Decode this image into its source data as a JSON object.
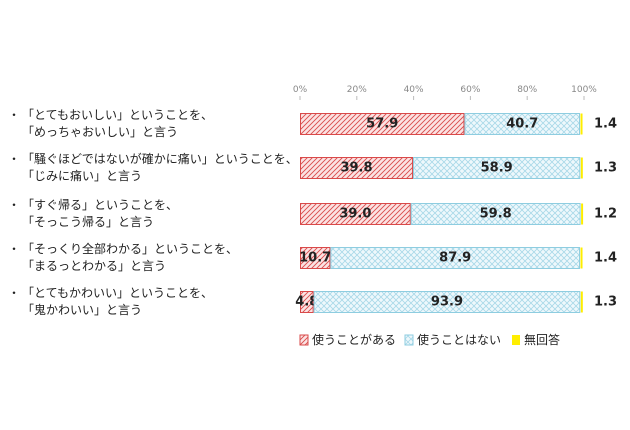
{
  "chart_data": {
    "type": "bar",
    "stacked": true,
    "orientation": "horizontal",
    "xlim": [
      0,
      100
    ],
    "x_ticks": [
      "0%",
      "20%",
      "40%",
      "60%",
      "80%",
      "100%"
    ],
    "categories": [
      [
        "「とてもおいしい」ということを、",
        "「めっちゃおいしい」と言う"
      ],
      [
        "「騒ぐほどではないが確かに痛い」ということを、",
        "「じみに痛い」と言う"
      ],
      [
        "「すぐ帰る」ということを、",
        "「そっこう帰る」と言う"
      ],
      [
        "「そっくり全部わかる」ということを、",
        "「まるっとわかる」と言う"
      ],
      [
        "「とてもかわいい」ということを、",
        "「鬼かわいい」と言う"
      ]
    ],
    "bullet": "・",
    "series": [
      {
        "name": "使うことがある",
        "values": [
          57.9,
          39.8,
          39.0,
          10.7,
          4.8
        ],
        "labels": [
          "57.9",
          "39.8",
          "39.0",
          "10.7",
          "4.8"
        ],
        "color": "#d94a4a"
      },
      {
        "name": "使うことはない",
        "values": [
          40.7,
          58.9,
          59.8,
          87.9,
          93.9
        ],
        "labels": [
          "40.7",
          "58.9",
          "59.8",
          "87.9",
          "93.9"
        ],
        "color": "#8ecde0"
      },
      {
        "name": "無回答",
        "values": [
          1.4,
          1.3,
          1.2,
          1.4,
          1.3
        ],
        "labels": [
          "1.4",
          "1.3",
          "1.2",
          "1.4",
          "1.3"
        ],
        "color": "#ffee00"
      }
    ],
    "grid": false,
    "legend_position": "bottom-right"
  }
}
